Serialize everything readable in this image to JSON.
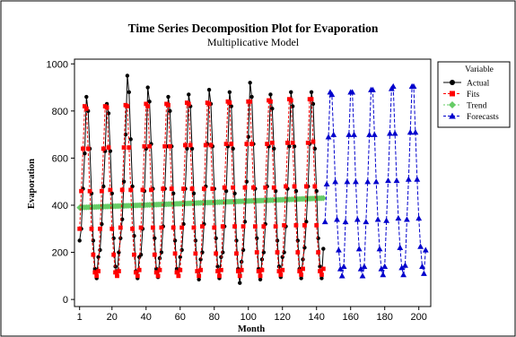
{
  "chart_data": {
    "type": "line",
    "title": "Time Series Decomposition Plot for Evaporation",
    "subtitle": "Multiplicative Model",
    "xlabel": "Month",
    "ylabel": "Evaporation",
    "xlim": [
      -2,
      207
    ],
    "ylim": [
      -30,
      1020
    ],
    "x_ticks": [
      1,
      20,
      40,
      60,
      80,
      100,
      120,
      140,
      160,
      180,
      200
    ],
    "y_ticks": [
      0,
      200,
      400,
      600,
      800,
      1000
    ],
    "grid": false,
    "legend_placement": "right",
    "legend_title": "Variable",
    "colors": {
      "actual": "#000000",
      "fits": "#ff0000",
      "trend": "#66cc66",
      "forecasts": "#0000cc"
    },
    "series": [
      {
        "name": "Actual",
        "marker": "circle",
        "x": [
          1,
          2,
          3,
          4,
          5,
          6,
          7,
          8,
          9,
          10,
          11,
          12,
          13,
          14,
          15,
          16,
          17,
          18,
          19,
          20,
          21,
          22,
          23,
          24,
          25,
          26,
          27,
          28,
          29,
          30,
          31,
          32,
          33,
          34,
          35,
          36,
          37,
          38,
          39,
          40,
          41,
          42,
          43,
          44,
          45,
          46,
          47,
          48,
          49,
          50,
          51,
          52,
          53,
          54,
          55,
          56,
          57,
          58,
          59,
          60,
          61,
          62,
          63,
          64,
          65,
          66,
          67,
          68,
          69,
          70,
          71,
          72,
          73,
          74,
          75,
          76,
          77,
          78,
          79,
          80,
          81,
          82,
          83,
          84,
          85,
          86,
          87,
          88,
          89,
          90,
          91,
          92,
          93,
          94,
          95,
          96,
          97,
          98,
          99,
          100,
          101,
          102,
          103,
          104,
          105,
          106,
          107,
          108,
          109,
          110,
          111,
          112,
          113,
          114,
          115,
          116,
          117,
          118,
          119,
          120,
          121,
          122,
          123,
          124,
          125,
          126,
          127,
          128,
          129,
          130,
          131,
          132,
          133,
          134,
          135,
          136,
          137,
          138,
          139,
          140,
          141,
          142,
          143,
          144
        ],
        "values": [
          250,
          300,
          470,
          620,
          860,
          800,
          640,
          450,
          250,
          130,
          90,
          180,
          210,
          320,
          480,
          630,
          830,
          790,
          630,
          450,
          260,
          140,
          100,
          200,
          260,
          340,
          500,
          700,
          950,
          880,
          680,
          480,
          270,
          120,
          90,
          180,
          190,
          300,
          460,
          640,
          900,
          840,
          660,
          470,
          260,
          130,
          95,
          175,
          200,
          310,
          470,
          650,
          860,
          800,
          650,
          450,
          250,
          130,
          100,
          180,
          210,
          320,
          470,
          640,
          870,
          820,
          640,
          450,
          250,
          120,
          85,
          170,
          200,
          320,
          480,
          660,
          890,
          830,
          650,
          470,
          260,
          140,
          90,
          180,
          200,
          310,
          460,
          650,
          880,
          820,
          640,
          450,
          250,
          130,
          70,
          160,
          210,
          330,
          500,
          690,
          920,
          860,
          660,
          470,
          260,
          130,
          85,
          170,
          200,
          320,
          480,
          650,
          870,
          810,
          640,
          460,
          250,
          140,
          95,
          180,
          200,
          310,
          470,
          650,
          880,
          820,
          650,
          460,
          250,
          130,
          90,
          170,
          220,
          330,
          480,
          660,
          880,
          830,
          640,
          460,
          260,
          140,
          90,
          215
        ]
      },
      {
        "name": "Fits",
        "marker": "square",
        "x": [
          1,
          2,
          3,
          4,
          5,
          6,
          7,
          8,
          9,
          10,
          11,
          12,
          13,
          14,
          15,
          16,
          17,
          18,
          19,
          20,
          21,
          22,
          23,
          24,
          25,
          26,
          27,
          28,
          29,
          30,
          31,
          32,
          33,
          34,
          35,
          36,
          37,
          38,
          39,
          40,
          41,
          42,
          43,
          44,
          45,
          46,
          47,
          48,
          49,
          50,
          51,
          52,
          53,
          54,
          55,
          56,
          57,
          58,
          59,
          60,
          61,
          62,
          63,
          64,
          65,
          66,
          67,
          68,
          69,
          70,
          71,
          72,
          73,
          74,
          75,
          76,
          77,
          78,
          79,
          80,
          81,
          82,
          83,
          84,
          85,
          86,
          87,
          88,
          89,
          90,
          91,
          92,
          93,
          94,
          95,
          96,
          97,
          98,
          99,
          100,
          101,
          102,
          103,
          104,
          105,
          106,
          107,
          108,
          109,
          110,
          111,
          112,
          113,
          114,
          115,
          116,
          117,
          118,
          119,
          120,
          121,
          122,
          123,
          124,
          125,
          126,
          127,
          128,
          129,
          130,
          131,
          132,
          133,
          134,
          135,
          136,
          137,
          138,
          139,
          140,
          141,
          142,
          143,
          144
        ],
        "values": [
          300,
          460,
          640,
          820,
          810,
          640,
          460,
          300,
          190,
          115,
          100,
          120,
          300,
          460,
          640,
          820,
          815,
          645,
          465,
          300,
          190,
          115,
          100,
          120,
          305,
          465,
          645,
          825,
          820,
          645,
          465,
          300,
          190,
          115,
          100,
          125,
          305,
          465,
          650,
          830,
          820,
          650,
          465,
          305,
          190,
          115,
          100,
          125,
          305,
          470,
          650,
          830,
          825,
          650,
          470,
          305,
          195,
          115,
          100,
          125,
          305,
          470,
          655,
          835,
          830,
          655,
          470,
          305,
          195,
          120,
          100,
          125,
          310,
          470,
          655,
          835,
          830,
          655,
          470,
          305,
          195,
          120,
          100,
          125,
          310,
          475,
          660,
          840,
          835,
          660,
          475,
          310,
          195,
          120,
          100,
          125,
          310,
          475,
          660,
          840,
          840,
          660,
          475,
          310,
          200,
          120,
          100,
          125,
          310,
          475,
          660,
          845,
          840,
          665,
          475,
          310,
          200,
          120,
          105,
          125,
          315,
          480,
          665,
          850,
          845,
          665,
          480,
          315,
          200,
          120,
          105,
          130,
          315,
          480,
          665,
          850,
          850,
          670,
          480,
          315,
          200,
          120,
          105,
          130
        ]
      },
      {
        "name": "Trend",
        "marker": "diamond",
        "x": [
          1,
          2,
          3,
          4,
          5,
          6,
          7,
          8,
          9,
          10,
          11,
          12,
          13,
          14,
          15,
          16,
          17,
          18,
          19,
          20,
          21,
          22,
          23,
          24,
          25,
          26,
          27,
          28,
          29,
          30,
          31,
          32,
          33,
          34,
          35,
          36,
          37,
          38,
          39,
          40,
          41,
          42,
          43,
          44,
          45,
          46,
          47,
          48,
          49,
          50,
          51,
          52,
          53,
          54,
          55,
          56,
          57,
          58,
          59,
          60,
          61,
          62,
          63,
          64,
          65,
          66,
          67,
          68,
          69,
          70,
          71,
          72,
          73,
          74,
          75,
          76,
          77,
          78,
          79,
          80,
          81,
          82,
          83,
          84,
          85,
          86,
          87,
          88,
          89,
          90,
          91,
          92,
          93,
          94,
          95,
          96,
          97,
          98,
          99,
          100,
          101,
          102,
          103,
          104,
          105,
          106,
          107,
          108,
          109,
          110,
          111,
          112,
          113,
          114,
          115,
          116,
          117,
          118,
          119,
          120,
          121,
          122,
          123,
          124,
          125,
          126,
          127,
          128,
          129,
          130,
          131,
          132,
          133,
          134,
          135,
          136,
          137,
          138,
          139,
          140,
          141,
          142,
          143,
          144
        ],
        "values": [
          390,
          390.3,
          390.6,
          390.8,
          391.1,
          391.4,
          391.7,
          392,
          392.2,
          392.5,
          392.8,
          393.1,
          393.4,
          393.6,
          393.9,
          394.2,
          394.5,
          394.8,
          395,
          395.3,
          395.6,
          395.9,
          396.2,
          396.4,
          396.7,
          397,
          397.3,
          397.6,
          397.8,
          398.1,
          398.4,
          398.7,
          399,
          399.2,
          399.5,
          399.8,
          400.1,
          400.4,
          400.6,
          400.9,
          401.2,
          401.5,
          401.8,
          402,
          402.3,
          402.6,
          402.9,
          403.2,
          403.4,
          403.7,
          404,
          404.3,
          404.6,
          404.8,
          405.1,
          405.4,
          405.7,
          406,
          406.2,
          406.5,
          406.8,
          407.1,
          407.4,
          407.6,
          407.9,
          408.2,
          408.5,
          408.8,
          409,
          409.3,
          409.6,
          409.9,
          410.2,
          410.4,
          410.7,
          411,
          411.3,
          411.6,
          411.8,
          412.1,
          412.4,
          412.7,
          413,
          413.2,
          413.5,
          413.8,
          414.1,
          414.4,
          414.6,
          414.9,
          415.2,
          415.5,
          415.8,
          416,
          416.3,
          416.6,
          416.9,
          417.2,
          417.4,
          417.7,
          418,
          418.3,
          418.6,
          418.8,
          419.1,
          419.4,
          419.7,
          420,
          420.2,
          420.5,
          420.8,
          421.1,
          421.4,
          421.6,
          421.9,
          422.2,
          422.5,
          422.8,
          423,
          423.3,
          423.6,
          423.9,
          424.2,
          424.4,
          424.7,
          425,
          425.3,
          425.6,
          425.8,
          426.1,
          426.4,
          426.7,
          427,
          427.2,
          427.5,
          427.8,
          428.1,
          428.4,
          428.6,
          428.9,
          429.2,
          429.5,
          429.8,
          430
        ]
      },
      {
        "name": "Forecasts",
        "marker": "triangle",
        "x": [
          145,
          146,
          147,
          148,
          149,
          150,
          151,
          152,
          153,
          154,
          155,
          156,
          157,
          158,
          159,
          160,
          161,
          162,
          163,
          164,
          165,
          166,
          167,
          168,
          169,
          170,
          171,
          172,
          173,
          174,
          175,
          176,
          177,
          178,
          179,
          180,
          181,
          182,
          183,
          184,
          185,
          186,
          187,
          188,
          189,
          190,
          191,
          192,
          193,
          194,
          195,
          196,
          197,
          198,
          199,
          200,
          201,
          202,
          203,
          204
        ],
        "values": [
          330,
          490,
          690,
          880,
          870,
          700,
          500,
          340,
          210,
          130,
          100,
          140,
          330,
          500,
          700,
          880,
          880,
          700,
          500,
          340,
          215,
          130,
          100,
          140,
          330,
          500,
          700,
          890,
          890,
          700,
          500,
          340,
          215,
          130,
          105,
          140,
          335,
          505,
          705,
          895,
          905,
          705,
          505,
          345,
          220,
          135,
          105,
          145,
          340,
          510,
          710,
          905,
          905,
          710,
          510,
          345,
          225,
          140,
          110,
          210
        ]
      }
    ]
  }
}
